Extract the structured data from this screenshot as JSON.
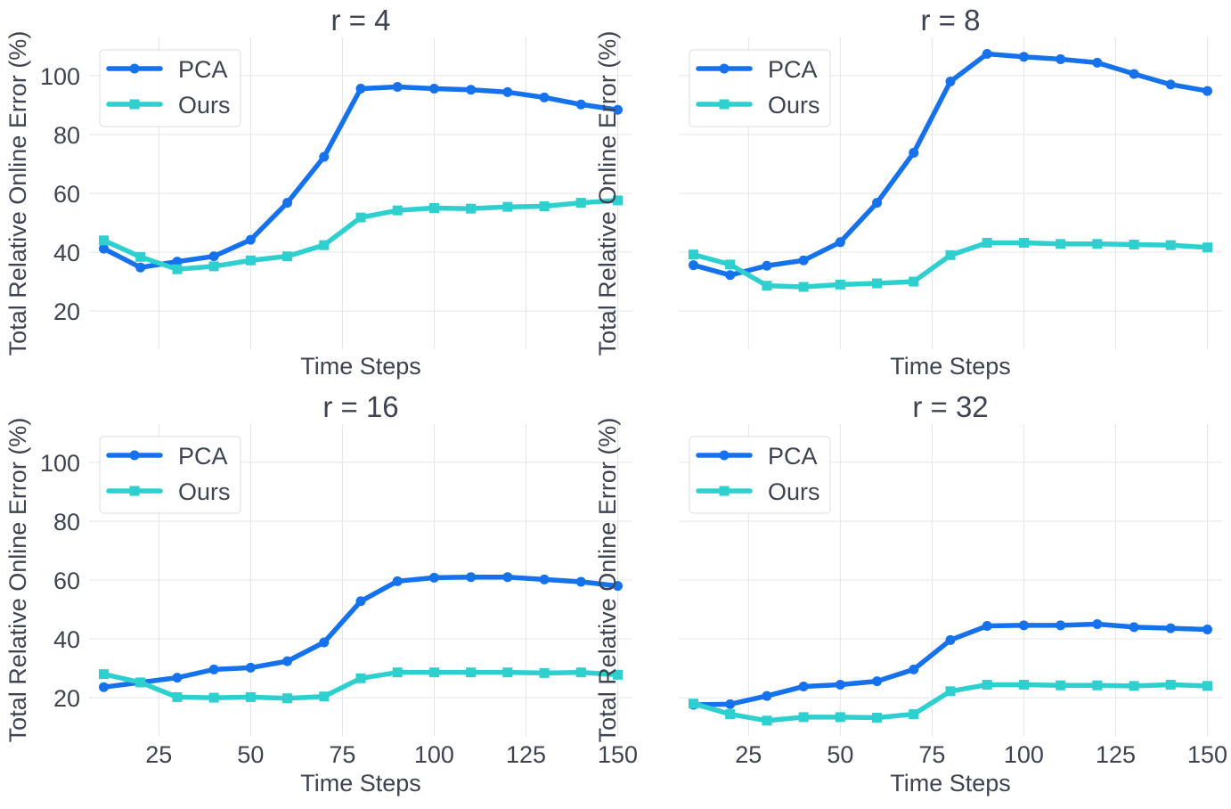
{
  "colors": {
    "pca": "#1672ec",
    "ours": "#2ecfcf",
    "grid": "#e4e4e4",
    "text": "#3d4350"
  },
  "chart_data": [
    {
      "type": "line",
      "title": "r = 4",
      "xlabel": "Time Steps",
      "ylabel": "Total Relative Online Error (%)",
      "xlim": [
        6,
        154
      ],
      "ylim": [
        7,
        113
      ],
      "xticks": [
        25,
        50,
        75,
        100,
        125,
        150
      ],
      "xtick_labels_visible": false,
      "yticks": [
        20,
        40,
        60,
        80,
        100
      ],
      "ytick_labels_visible": true,
      "grid": true,
      "legend": "top-left",
      "x": [
        10,
        20,
        30,
        40,
        50,
        60,
        70,
        80,
        90,
        100,
        110,
        120,
        130,
        140,
        150
      ],
      "series": [
        {
          "name": "PCA",
          "marker": "circle",
          "values": [
            41.2,
            34.8,
            36.8,
            38.6,
            44.2,
            56.8,
            72.4,
            95.6,
            96.2,
            95.6,
            95.2,
            94.4,
            92.6,
            90.2,
            88.4
          ]
        },
        {
          "name": "Ours",
          "marker": "square",
          "values": [
            44.0,
            38.4,
            34.2,
            35.2,
            37.2,
            38.6,
            42.4,
            51.8,
            54.2,
            55.0,
            54.8,
            55.4,
            55.6,
            56.8,
            57.6
          ]
        }
      ]
    },
    {
      "type": "line",
      "title": "r = 8",
      "xlabel": "Time Steps",
      "ylabel": "Total Relative Online Error (%)",
      "xlim": [
        6,
        154
      ],
      "ylim": [
        7,
        113
      ],
      "xticks": [
        25,
        50,
        75,
        100,
        125,
        150
      ],
      "xtick_labels_visible": false,
      "yticks": [
        20,
        40,
        60,
        80,
        100
      ],
      "ytick_labels_visible": false,
      "grid": true,
      "legend": "top-left",
      "x": [
        10,
        20,
        30,
        40,
        50,
        60,
        70,
        80,
        90,
        100,
        110,
        120,
        130,
        140,
        150
      ],
      "series": [
        {
          "name": "PCA",
          "marker": "circle",
          "values": [
            35.6,
            32.2,
            35.4,
            37.2,
            43.4,
            56.8,
            73.8,
            98.0,
            107.4,
            106.4,
            105.6,
            104.4,
            100.6,
            97.0,
            94.8
          ]
        },
        {
          "name": "Ours",
          "marker": "square",
          "values": [
            39.2,
            35.8,
            28.6,
            28.2,
            29.0,
            29.4,
            30.0,
            39.0,
            43.2,
            43.2,
            42.8,
            42.8,
            42.6,
            42.4,
            41.6
          ]
        }
      ]
    },
    {
      "type": "line",
      "title": "r = 16",
      "xlabel": "Time Steps",
      "ylabel": "Total Relative Online Error (%)",
      "xlim": [
        6,
        154
      ],
      "ylim": [
        7,
        113
      ],
      "xticks": [
        25,
        50,
        75,
        100,
        125,
        150
      ],
      "xtick_labels_visible": true,
      "yticks": [
        20,
        40,
        60,
        80,
        100
      ],
      "ytick_labels_visible": true,
      "grid": true,
      "legend": "top-left",
      "x": [
        10,
        20,
        30,
        40,
        50,
        60,
        70,
        80,
        90,
        100,
        110,
        120,
        130,
        140,
        150
      ],
      "series": [
        {
          "name": "PCA",
          "marker": "circle",
          "values": [
            23.6,
            25.2,
            26.8,
            29.6,
            30.2,
            32.4,
            38.8,
            52.8,
            59.6,
            60.8,
            61.0,
            61.0,
            60.2,
            59.4,
            58.0
          ]
        },
        {
          "name": "Ours",
          "marker": "square",
          "values": [
            28.0,
            25.2,
            20.2,
            20.0,
            20.2,
            19.8,
            20.4,
            26.6,
            28.6,
            28.6,
            28.6,
            28.6,
            28.4,
            28.6,
            27.8
          ]
        }
      ]
    },
    {
      "type": "line",
      "title": "r = 32",
      "xlabel": "Time Steps",
      "ylabel": "Total Relative Online Error (%)",
      "xlim": [
        6,
        154
      ],
      "ylim": [
        7,
        113
      ],
      "xticks": [
        25,
        50,
        75,
        100,
        125,
        150
      ],
      "xtick_labels_visible": true,
      "yticks": [
        20,
        40,
        60,
        80,
        100
      ],
      "ytick_labels_visible": false,
      "grid": true,
      "legend": "top-left",
      "x": [
        10,
        20,
        30,
        40,
        50,
        60,
        70,
        80,
        90,
        100,
        110,
        120,
        130,
        140,
        150
      ],
      "series": [
        {
          "name": "PCA",
          "marker": "circle",
          "values": [
            17.6,
            17.8,
            20.6,
            23.8,
            24.4,
            25.6,
            29.6,
            39.6,
            44.4,
            44.6,
            44.6,
            45.0,
            44.0,
            43.6,
            43.2
          ]
        },
        {
          "name": "Ours",
          "marker": "square",
          "values": [
            18.0,
            14.4,
            12.2,
            13.4,
            13.4,
            13.2,
            14.4,
            22.2,
            24.4,
            24.4,
            24.2,
            24.2,
            24.0,
            24.4,
            24.0
          ]
        }
      ]
    }
  ]
}
